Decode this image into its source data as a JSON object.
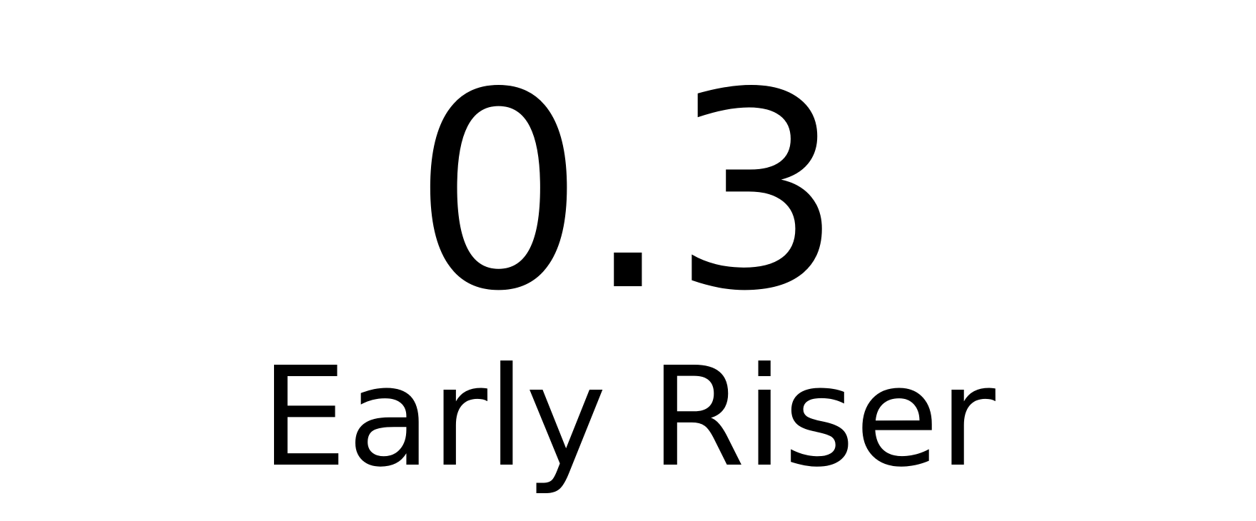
{
  "display": {
    "value": "0.3",
    "label": "Early Riser"
  },
  "colors": {
    "background": "#ffffff",
    "text": "#000000"
  }
}
